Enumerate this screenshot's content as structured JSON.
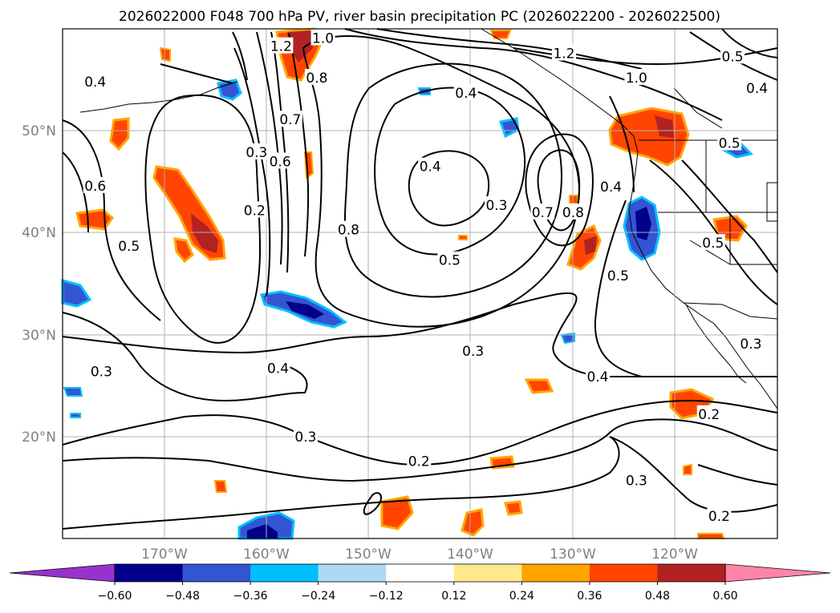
{
  "chart_data": {
    "type": "contour-map",
    "title": "2026022000 F048 700 hPa PV, river basin precipitation PC (2026022200 - 2026022500)",
    "map": {
      "lon_range": [
        -180,
        -110
      ],
      "lat_range": [
        10,
        60
      ],
      "grid": true,
      "lon_ticks": [
        {
          "value": -170,
          "label": "170°W"
        },
        {
          "value": -160,
          "label": "160°W"
        },
        {
          "value": -150,
          "label": "150°W"
        },
        {
          "value": -140,
          "label": "140°W"
        },
        {
          "value": -130,
          "label": "130°W"
        },
        {
          "value": -120,
          "label": "120°W"
        }
      ],
      "lat_ticks": [
        {
          "value": 50,
          "label": "50°N"
        },
        {
          "value": 40,
          "label": "40°N"
        },
        {
          "value": 30,
          "label": "30°N"
        },
        {
          "value": 20,
          "label": "20°N"
        }
      ]
    },
    "colorbar": {
      "levels": [
        -0.6,
        -0.48,
        -0.36,
        -0.24,
        -0.12,
        0.12,
        0.24,
        0.36,
        0.48,
        0.6
      ],
      "tick_labels": [
        "−0.60",
        "−0.48",
        "−0.36",
        "−0.24",
        "−0.12",
        "0.12",
        "0.24",
        "0.36",
        "0.48",
        "0.60"
      ],
      "colors": [
        "#9932cc",
        "#00008b",
        "#3455d1",
        "#00bfff",
        "#add8f6",
        "#ffffff",
        "#ffe98c",
        "#ffa500",
        "#ff4500",
        "#b22222",
        "#ff85a8"
      ],
      "extend": "both"
    },
    "contour_labels": [
      {
        "text": "0.4",
        "lon": -176.8,
        "lat": 54.8
      },
      {
        "text": "1.2",
        "lon": -158.6,
        "lat": 58.3
      },
      {
        "text": "1.0",
        "lon": -154.5,
        "lat": 59.1
      },
      {
        "text": "0.8",
        "lon": -155.1,
        "lat": 55.2
      },
      {
        "text": "0.7",
        "lon": -157.7,
        "lat": 51.1
      },
      {
        "text": "0.6",
        "lon": -158.7,
        "lat": 47.0
      },
      {
        "text": "0.3",
        "lon": -161.0,
        "lat": 47.9
      },
      {
        "text": "0.2",
        "lon": -161.2,
        "lat": 42.2
      },
      {
        "text": "0.6",
        "lon": -176.8,
        "lat": 44.6
      },
      {
        "text": "0.5",
        "lon": -173.5,
        "lat": 38.7
      },
      {
        "text": "0.4",
        "lon": -140.5,
        "lat": 53.7
      },
      {
        "text": "0.4",
        "lon": -144.0,
        "lat": 46.5
      },
      {
        "text": "0.8",
        "lon": -152.0,
        "lat": 40.3
      },
      {
        "text": "0.3",
        "lon": -137.5,
        "lat": 42.7
      },
      {
        "text": "0.7",
        "lon": -133.0,
        "lat": 42.0
      },
      {
        "text": "0.8",
        "lon": -130.0,
        "lat": 42.0
      },
      {
        "text": "0.5",
        "lon": -142.1,
        "lat": 37.3
      },
      {
        "text": "1.2",
        "lon": -130.9,
        "lat": 57.6
      },
      {
        "text": "1.0",
        "lon": -123.8,
        "lat": 55.2
      },
      {
        "text": "0.5",
        "lon": -114.4,
        "lat": 57.3
      },
      {
        "text": "0.4",
        "lon": -112.0,
        "lat": 54.2
      },
      {
        "text": "0.4",
        "lon": -126.3,
        "lat": 44.5
      },
      {
        "text": "0.5",
        "lon": -114.7,
        "lat": 48.8
      },
      {
        "text": "0.5",
        "lon": -116.3,
        "lat": 39.0
      },
      {
        "text": "0.5",
        "lon": -125.6,
        "lat": 35.8
      },
      {
        "text": "0.3",
        "lon": -139.8,
        "lat": 28.4
      },
      {
        "text": "0.4",
        "lon": -127.6,
        "lat": 25.9
      },
      {
        "text": "0.3",
        "lon": -176.2,
        "lat": 26.4
      },
      {
        "text": "0.4",
        "lon": -158.9,
        "lat": 26.7
      },
      {
        "text": "0.3",
        "lon": -156.2,
        "lat": 20.0
      },
      {
        "text": "0.2",
        "lon": -145.1,
        "lat": 17.6
      },
      {
        "text": "0.2",
        "lon": -116.7,
        "lat": 22.2
      },
      {
        "text": "0.3",
        "lon": -123.8,
        "lat": 15.7
      },
      {
        "text": "0.2",
        "lon": -115.7,
        "lat": 12.2
      },
      {
        "text": "0.3",
        "lon": -112.6,
        "lat": 29.1
      }
    ]
  }
}
